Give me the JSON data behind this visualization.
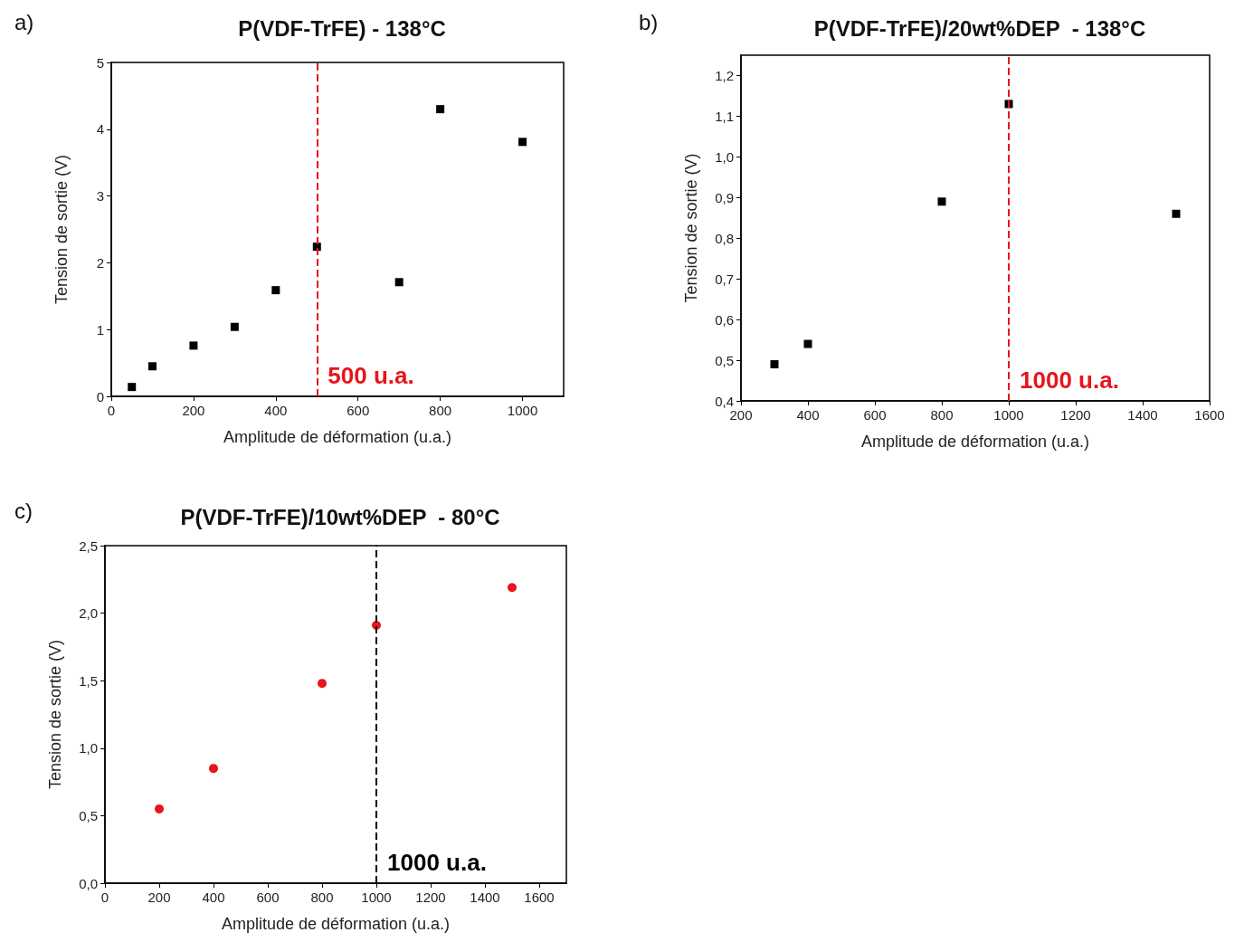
{
  "chart_data": [
    {
      "type": "scatter",
      "title": "P(VDF-TrFE) - 138°C",
      "xlabel": "Amplitude de déformation (u.a.)",
      "ylabel": "Tension de sortie (V)",
      "annotations": [
        "a)"
      ],
      "x": [
        50,
        100,
        200,
        300,
        400,
        500,
        700,
        800,
        1000
      ],
      "series": [
        {
          "color": "#000000",
          "values": [
            0.14,
            0.45,
            0.76,
            1.04,
            1.59,
            2.24,
            1.71,
            4.3,
            3.81
          ]
        }
      ],
      "xlim": [
        0,
        1100
      ],
      "xticks": [
        0,
        200,
        400,
        600,
        800,
        1000
      ],
      "ylim": [
        0,
        5
      ],
      "yticks": [
        0,
        1,
        2,
        3,
        4,
        5
      ],
      "marker": "square",
      "grid": false,
      "ref_lines": [
        {
          "axis": "x",
          "value": 500,
          "label": "500 u.a.",
          "color": "#e8141b",
          "line_style": "dashed"
        }
      ]
    },
    {
      "type": "scatter",
      "title": "P(VDF-TrFE)/20wt%DEP  - 138°C",
      "xlabel": "Amplitude de déformation (u.a.)",
      "ylabel": "Tension de sortie (V)",
      "annotations": [
        "b)"
      ],
      "x": [
        300,
        400,
        800,
        1000,
        1500
      ],
      "series": [
        {
          "color": "#000000",
          "values": [
            0.49,
            0.54,
            0.89,
            1.13,
            0.86
          ]
        }
      ],
      "xlim": [
        200,
        1600
      ],
      "xticks": [
        200,
        400,
        600,
        800,
        1000,
        1200,
        1400,
        1600
      ],
      "ylim": [
        0.4,
        1.25
      ],
      "yticks": [
        {
          "value": 0.4,
          "label": "0,4"
        },
        {
          "value": 0.5,
          "label": "0,5"
        },
        {
          "value": 0.6,
          "label": "0,6"
        },
        {
          "value": 0.7,
          "label": "0,7"
        },
        {
          "value": 0.8,
          "label": "0,8"
        },
        {
          "value": 0.9,
          "label": "0,9"
        },
        {
          "value": 1.0,
          "label": "1,0"
        },
        {
          "value": 1.1,
          "label": "1,1"
        },
        {
          "value": 1.2,
          "label": "1,2"
        }
      ],
      "marker": "square",
      "grid": false,
      "ref_lines": [
        {
          "axis": "x",
          "value": 1000,
          "label": "1000 u.a.",
          "color": "#e8141b",
          "line_style": "dashed"
        }
      ]
    },
    {
      "type": "scatter",
      "title": "P(VDF-TrFE)/10wt%DEP  - 80°C",
      "xlabel": "Amplitude de déformation (u.a.)",
      "ylabel": "Tension de sortie (V)",
      "annotations": [
        "c)"
      ],
      "x": [
        200,
        400,
        800,
        1000,
        1500
      ],
      "series": [
        {
          "color": "#e8141b",
          "values": [
            0.55,
            0.85,
            1.48,
            1.91,
            2.19
          ]
        }
      ],
      "xlim": [
        0,
        1700
      ],
      "xticks": [
        0,
        200,
        400,
        600,
        800,
        1000,
        1200,
        1400,
        1600
      ],
      "ylim": [
        0,
        2.5
      ],
      "yticks": [
        {
          "value": 0,
          "label": "0,0"
        },
        {
          "value": 0.5,
          "label": "0,5"
        },
        {
          "value": 1.0,
          "label": "1,0"
        },
        {
          "value": 1.5,
          "label": "1,5"
        },
        {
          "value": 2.0,
          "label": "2,0"
        },
        {
          "value": 2.5,
          "label": "2,5"
        }
      ],
      "marker": "circle",
      "grid": false,
      "ref_lines": [
        {
          "axis": "x",
          "value": 1000,
          "label": "1000 u.a.",
          "color": "#000000",
          "line_style": "dashed"
        }
      ]
    }
  ]
}
